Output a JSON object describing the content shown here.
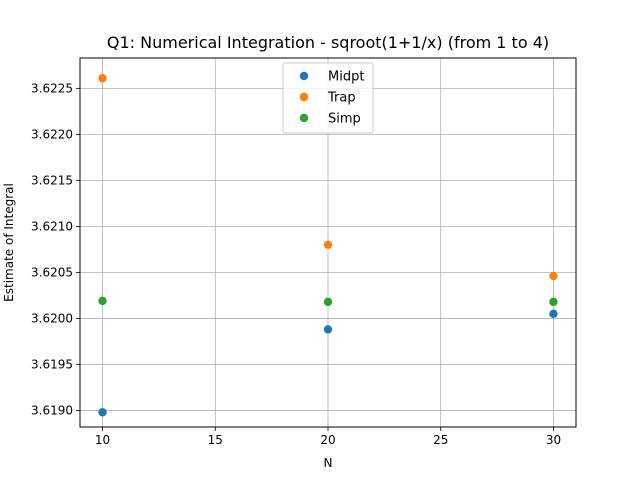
{
  "chart_data": {
    "type": "scatter",
    "title": "Q1: Numerical Integration - sqroot(1+1/x) (from 1 to 4)",
    "xlabel": "N",
    "ylabel": "Estimate of Integral",
    "xlim": [
      9.0,
      31.0
    ],
    "ylim": [
      3.61882,
      3.62283
    ],
    "x_ticks": [
      10,
      15,
      20,
      25,
      30
    ],
    "x_tick_labels": [
      "10",
      "15",
      "20",
      "25",
      "30"
    ],
    "y_ticks": [
      3.619,
      3.6195,
      3.62,
      3.6205,
      3.621,
      3.6215,
      3.622,
      3.6225
    ],
    "y_tick_labels": [
      "3.6190",
      "3.6195",
      "3.6200",
      "3.6205",
      "3.6210",
      "3.6215",
      "3.6220",
      "3.6225"
    ],
    "grid": true,
    "legend_position": "upper-center",
    "series": [
      {
        "name": "Midpt",
        "color": "#1f77b4",
        "x": [
          10,
          20,
          30
        ],
        "y": [
          3.61898,
          3.61988,
          3.62005
        ]
      },
      {
        "name": "Trap",
        "color": "#ff7f0e",
        "x": [
          10,
          20,
          30
        ],
        "y": [
          3.62261,
          3.6208,
          3.62046
        ]
      },
      {
        "name": "Simp",
        "color": "#2ca02c",
        "x": [
          10,
          20,
          30
        ],
        "y": [
          3.62019,
          3.62018,
          3.62018
        ]
      }
    ]
  }
}
